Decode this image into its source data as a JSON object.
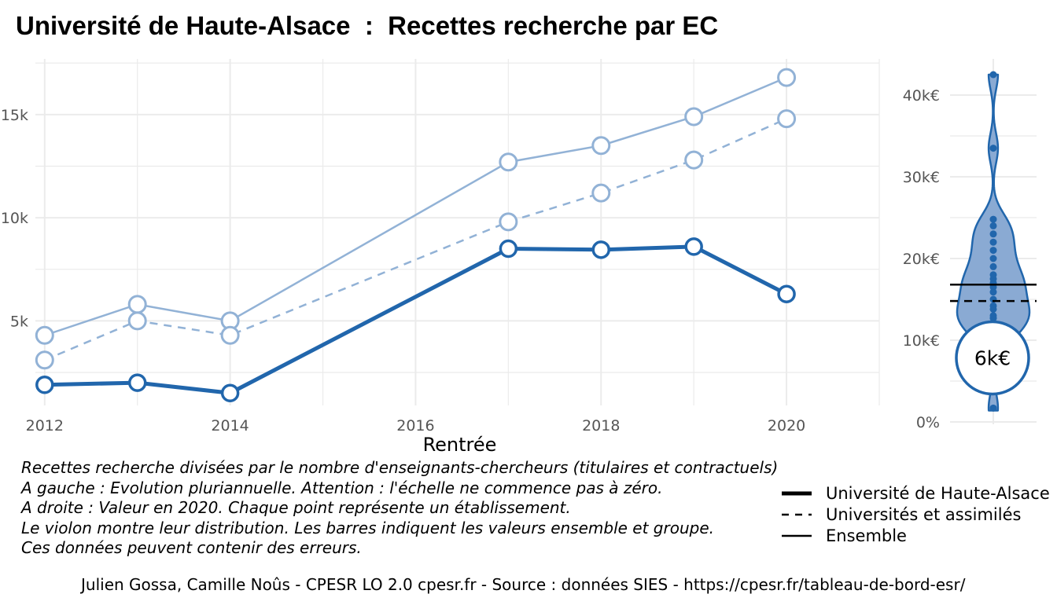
{
  "title": "Université de Haute-Alsace  :  Recettes recherche par EC",
  "chart_data": [
    {
      "type": "line",
      "xlabel": "Rentrée",
      "x_ticks": [
        "2012",
        "2014",
        "2016",
        "2018",
        "2020"
      ],
      "y_ticks": [
        "5k",
        "10k",
        "15k"
      ],
      "xlim": [
        2011.9,
        2021.0
      ],
      "ylim": [
        900,
        17700
      ],
      "x": [
        2012,
        2013,
        2014,
        2017,
        2018,
        2019,
        2020
      ],
      "series": [
        {
          "name": "Université de Haute-Alsace",
          "style": "solid-thick",
          "color": "#2166ac",
          "values": [
            1900,
            2000,
            1500,
            8500,
            8450,
            8600,
            6300
          ]
        },
        {
          "name": "Universités et assimilés",
          "style": "dashed",
          "color": "#92b2d6",
          "values": [
            3100,
            5000,
            4300,
            9800,
            11200,
            12800,
            14800
          ]
        },
        {
          "name": "Ensemble",
          "style": "solid-thin",
          "color": "#92b2d6",
          "values": [
            4300,
            5800,
            5000,
            12700,
            13500,
            14900,
            16800
          ]
        }
      ]
    },
    {
      "type": "violin",
      "y_ticks": [
        "0%",
        "10k€",
        "20k€",
        "30k€",
        "40k€"
      ],
      "ylim": [
        -1000,
        44000
      ],
      "points": [
        1700,
        8800,
        10500,
        11200,
        12000,
        12700,
        12700,
        13000,
        13800,
        14200,
        15000,
        15900,
        16500,
        17000,
        17500,
        18000,
        19000,
        20000,
        21000,
        22000,
        23000,
        24000,
        24800,
        33500,
        42500
      ],
      "violin_range": [
        1400,
        42500
      ],
      "ensemble_line": 16800,
      "group_line": 14800,
      "highlight_value": 6300,
      "highlight_label": "6k€"
    }
  ],
  "caption_lines": [
    "Recettes recherche divisées par le nombre d'enseignants-chercheurs (titulaires et contractuels)",
    "A gauche : Evolution pluriannuelle. Attention : l'échelle ne commence pas à zéro.",
    "A droite : Valeur en 2020. Chaque point représente un établissement.",
    "Le violon montre leur distribution. Les barres indiquent les valeurs ensemble et groupe.",
    "Ces données peuvent contenir des erreurs."
  ],
  "legend": [
    {
      "label": "Université de Haute-Alsace",
      "style": "thick"
    },
    {
      "label": "Universités et assimilés",
      "style": "dashed"
    },
    {
      "label": "Ensemble",
      "style": "thin"
    }
  ],
  "source": "Julien Gossa, Camille Noûs - CPESR LO 2.0 cpesr.fr - Source : données SIES - https://cpesr.fr/tableau-de-bord-esr/"
}
